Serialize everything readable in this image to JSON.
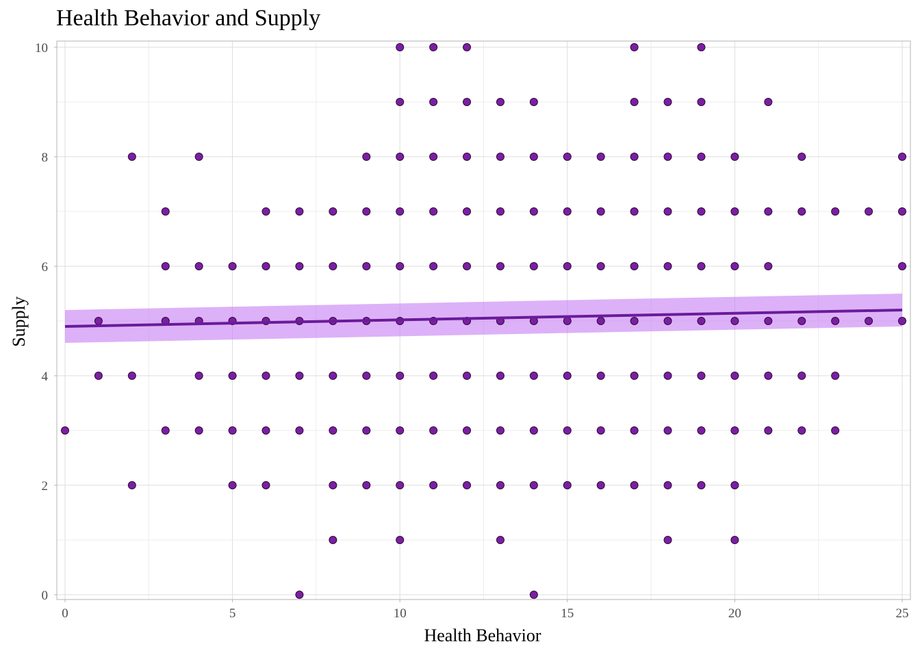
{
  "chart_data": {
    "type": "scatter",
    "title": "Health Behavior and Supply",
    "xlabel": "Health Behavior",
    "ylabel": "Supply",
    "xlim": [
      0,
      25
    ],
    "ylim": [
      0,
      10
    ],
    "x_ticks": [
      "0",
      "5",
      "10",
      "15",
      "20",
      "25"
    ],
    "y_ticks": [
      "0",
      "2",
      "4",
      "6",
      "8",
      "10"
    ],
    "grid": true,
    "point_color": "#7B1FA2",
    "point_edge_color": "#2E0A3A",
    "trend_color": "#6A1B9A",
    "band_color": "#C77DF3",
    "trend_line": {
      "x": [
        0,
        25
      ],
      "y": [
        4.9,
        5.2
      ],
      "ci_low": [
        4.6,
        4.9
      ],
      "ci_high": [
        5.2,
        5.5
      ]
    },
    "points": [
      [
        0,
        3
      ],
      [
        1,
        5
      ],
      [
        1,
        4
      ],
      [
        2,
        8
      ],
      [
        2,
        4
      ],
      [
        2,
        2
      ],
      [
        3,
        7
      ],
      [
        3,
        6
      ],
      [
        3,
        5
      ],
      [
        3,
        3
      ],
      [
        4,
        8
      ],
      [
        4,
        6
      ],
      [
        4,
        5
      ],
      [
        4,
        4
      ],
      [
        4,
        3
      ],
      [
        5,
        6
      ],
      [
        5,
        5
      ],
      [
        5,
        4
      ],
      [
        5,
        3
      ],
      [
        5,
        2
      ],
      [
        6,
        7
      ],
      [
        6,
        6
      ],
      [
        6,
        5
      ],
      [
        6,
        4
      ],
      [
        6,
        3
      ],
      [
        6,
        2
      ],
      [
        7,
        7
      ],
      [
        7,
        6
      ],
      [
        7,
        5
      ],
      [
        7,
        4
      ],
      [
        7,
        3
      ],
      [
        7,
        0
      ],
      [
        8,
        7
      ],
      [
        8,
        6
      ],
      [
        8,
        5
      ],
      [
        8,
        4
      ],
      [
        8,
        3
      ],
      [
        8,
        2
      ],
      [
        8,
        1
      ],
      [
        9,
        8
      ],
      [
        9,
        7
      ],
      [
        9,
        6
      ],
      [
        9,
        5
      ],
      [
        9,
        4
      ],
      [
        9,
        3
      ],
      [
        9,
        2
      ],
      [
        10,
        10
      ],
      [
        10,
        9
      ],
      [
        10,
        8
      ],
      [
        10,
        7
      ],
      [
        10,
        6
      ],
      [
        10,
        5
      ],
      [
        10,
        4
      ],
      [
        10,
        3
      ],
      [
        10,
        2
      ],
      [
        10,
        1
      ],
      [
        11,
        10
      ],
      [
        11,
        9
      ],
      [
        11,
        8
      ],
      [
        11,
        7
      ],
      [
        11,
        6
      ],
      [
        11,
        5
      ],
      [
        11,
        4
      ],
      [
        11,
        3
      ],
      [
        11,
        2
      ],
      [
        12,
        10
      ],
      [
        12,
        9
      ],
      [
        12,
        8
      ],
      [
        12,
        7
      ],
      [
        12,
        6
      ],
      [
        12,
        5
      ],
      [
        12,
        4
      ],
      [
        12,
        3
      ],
      [
        12,
        2
      ],
      [
        13,
        9
      ],
      [
        13,
        8
      ],
      [
        13,
        7
      ],
      [
        13,
        6
      ],
      [
        13,
        5
      ],
      [
        13,
        4
      ],
      [
        13,
        3
      ],
      [
        13,
        2
      ],
      [
        13,
        1
      ],
      [
        14,
        9
      ],
      [
        14,
        8
      ],
      [
        14,
        7
      ],
      [
        14,
        6
      ],
      [
        14,
        5
      ],
      [
        14,
        4
      ],
      [
        14,
        3
      ],
      [
        14,
        2
      ],
      [
        14,
        0
      ],
      [
        15,
        8
      ],
      [
        15,
        7
      ],
      [
        15,
        6
      ],
      [
        15,
        5
      ],
      [
        15,
        4
      ],
      [
        15,
        3
      ],
      [
        15,
        2
      ],
      [
        16,
        8
      ],
      [
        16,
        7
      ],
      [
        16,
        6
      ],
      [
        16,
        5
      ],
      [
        16,
        4
      ],
      [
        16,
        3
      ],
      [
        16,
        2
      ],
      [
        17,
        10
      ],
      [
        17,
        9
      ],
      [
        17,
        8
      ],
      [
        17,
        7
      ],
      [
        17,
        6
      ],
      [
        17,
        5
      ],
      [
        17,
        4
      ],
      [
        17,
        3
      ],
      [
        17,
        2
      ],
      [
        18,
        9
      ],
      [
        18,
        8
      ],
      [
        18,
        7
      ],
      [
        18,
        6
      ],
      [
        18,
        5
      ],
      [
        18,
        4
      ],
      [
        18,
        3
      ],
      [
        18,
        2
      ],
      [
        18,
        1
      ],
      [
        19,
        10
      ],
      [
        19,
        9
      ],
      [
        19,
        8
      ],
      [
        19,
        7
      ],
      [
        19,
        6
      ],
      [
        19,
        5
      ],
      [
        19,
        4
      ],
      [
        19,
        3
      ],
      [
        19,
        2
      ],
      [
        20,
        8
      ],
      [
        20,
        7
      ],
      [
        20,
        6
      ],
      [
        20,
        5
      ],
      [
        20,
        4
      ],
      [
        20,
        3
      ],
      [
        20,
        2
      ],
      [
        20,
        1
      ],
      [
        21,
        9
      ],
      [
        21,
        7
      ],
      [
        21,
        6
      ],
      [
        21,
        5
      ],
      [
        21,
        4
      ],
      [
        21,
        3
      ],
      [
        22,
        8
      ],
      [
        22,
        7
      ],
      [
        22,
        5
      ],
      [
        22,
        4
      ],
      [
        22,
        3
      ],
      [
        23,
        7
      ],
      [
        23,
        5
      ],
      [
        23,
        4
      ],
      [
        23,
        3
      ],
      [
        24,
        7
      ],
      [
        24,
        5
      ],
      [
        25,
        8
      ],
      [
        25,
        7
      ],
      [
        25,
        6
      ],
      [
        25,
        5
      ]
    ]
  }
}
